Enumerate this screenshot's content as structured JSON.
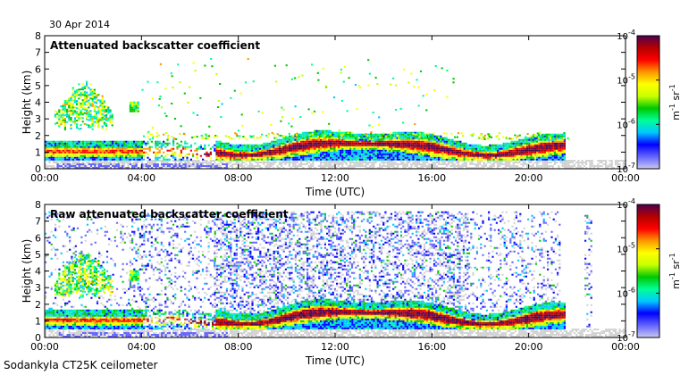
{
  "date": "30 Apr 2014",
  "footer": "Sodankyla CT25K ceilometer",
  "colors": {
    "scale_stops": [
      "#c8c8f0",
      "#6464ff",
      "#0000ff",
      "#00c8ff",
      "#00ff96",
      "#00c800",
      "#c8ff00",
      "#ffff00",
      "#ff9600",
      "#ff0000",
      "#b40000",
      "#500050"
    ],
    "background": "#ffffff",
    "noise": "#d2d2d2"
  },
  "chart_data": [
    {
      "type": "heatmap",
      "title": "Attenuated backscatter coefficient",
      "xlabel": "Time (UTC)",
      "ylabel": "Height (km)",
      "xticks": [
        "00:00",
        "04:00",
        "08:00",
        "12:00",
        "16:00",
        "20:00",
        "00:00"
      ],
      "yticks": [
        "0",
        "1",
        "2",
        "3",
        "4",
        "5",
        "6",
        "7",
        "8"
      ],
      "xlim": [
        0,
        24
      ],
      "ylim": [
        0,
        8
      ],
      "colorbar": {
        "scale": "log",
        "range": [
          1e-07,
          0.0001
        ],
        "ticks": [
          {
            "mant": "10",
            "exp": "-7",
            "value": 1e-07
          },
          {
            "mant": "10",
            "exp": "-6",
            "value": 1e-06
          },
          {
            "mant": "10",
            "exp": "-5",
            "value": 1e-05
          },
          {
            "mant": "10",
            "exp": "-4",
            "value": 0.0001
          }
        ],
        "label_base": "m",
        "label_exp1": "-1",
        "label_mid": " sr",
        "label_exp2": "-1"
      },
      "features": [
        {
          "name": "boundary layer aerosol",
          "t": [
            0,
            21.5
          ],
          "h": [
            0.8,
            1.8
          ]
        },
        {
          "name": "mid-level cloud",
          "t": [
            0.3,
            3.5
          ],
          "h": [
            2.5,
            5.3
          ]
        },
        {
          "name": "intermittent high echoes",
          "t": [
            5,
            17
          ],
          "h": [
            2,
            7
          ]
        }
      ]
    },
    {
      "type": "heatmap",
      "title": "Raw attenuated backscatter coefficient",
      "xlabel": "Time (UTC)",
      "ylabel": "Height (km)",
      "xticks": [
        "00:00",
        "04:00",
        "08:00",
        "12:00",
        "16:00",
        "20:00",
        "00:00"
      ],
      "yticks": [
        "0",
        "1",
        "2",
        "3",
        "4",
        "5",
        "6",
        "7",
        "8"
      ],
      "xlim": [
        0,
        24
      ],
      "ylim": [
        0,
        8
      ],
      "colorbar": {
        "scale": "log",
        "range": [
          1e-07,
          0.0001
        ],
        "ticks": [
          {
            "mant": "10",
            "exp": "-7",
            "value": 1e-07
          },
          {
            "mant": "10",
            "exp": "-6",
            "value": 1e-06
          },
          {
            "mant": "10",
            "exp": "-5",
            "value": 1e-05
          },
          {
            "mant": "10",
            "exp": "-4",
            "value": 0.0001
          }
        ],
        "label_base": "m",
        "label_exp1": "-1",
        "label_mid": " sr",
        "label_exp2": "-1"
      },
      "features": [
        {
          "name": "boundary layer aerosol",
          "t": [
            0,
            21.5
          ],
          "h": [
            0.8,
            1.8
          ]
        },
        {
          "name": "noise",
          "t": [
            0,
            24
          ],
          "h": [
            0,
            7.5
          ]
        }
      ]
    }
  ]
}
